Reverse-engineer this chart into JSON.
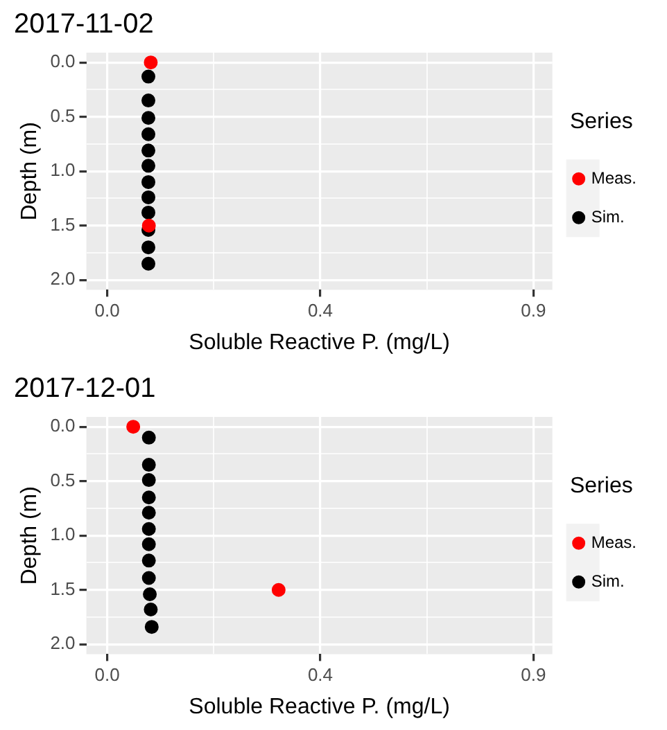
{
  "chart_data": [
    {
      "type": "scatter",
      "title": "2017-11-02",
      "xlabel": "Soluble Reactive P. (mg/L)",
      "ylabel": "Depth (m)",
      "legend_title": "Series",
      "legend": "right",
      "grid": true,
      "marker": "circle",
      "xlim": [
        -0.044,
        0.94
      ],
      "xticks": [
        {
          "value": 0,
          "label": "0.0"
        },
        {
          "value": 0.225,
          "label": null
        },
        {
          "value": 0.45,
          "label": "0.4"
        },
        {
          "value": 0.675,
          "label": null
        },
        0.9
      ],
      "ylim": [
        2.09,
        -0.09
      ],
      "yticks": [
        {
          "value": 0,
          "label": "0.0"
        },
        {
          "value": 0.25,
          "label": null
        },
        {
          "value": 0.5,
          "label": "0.5"
        },
        {
          "value": 0.75,
          "label": null
        },
        {
          "value": 1,
          "label": "1.0"
        },
        {
          "value": 1.25,
          "label": null
        },
        {
          "value": 1.5,
          "label": "1.5"
        },
        {
          "value": 1.75,
          "label": null
        },
        {
          "value": 2,
          "label": "2.0"
        }
      ],
      "series": [
        {
          "name": "Meas.",
          "color": "#ff0000",
          "x": [
            0.092,
            0.088
          ],
          "values": [
            0,
            1.5
          ]
        },
        {
          "name": "Sim.",
          "color": "#000000",
          "x": [
            0.087,
            0.087,
            0.087,
            0.087,
            0.087,
            0.087,
            0.087,
            0.087,
            0.087,
            0.087,
            0.087,
            0.087
          ],
          "values": [
            0.13,
            0.35,
            0.51,
            0.66,
            0.81,
            0.95,
            1.1,
            1.24,
            1.38,
            1.54,
            1.7,
            1.85
          ]
        }
      ]
    },
    {
      "type": "scatter",
      "title": "2017-12-01",
      "xlabel": "Soluble Reactive P. (mg/L)",
      "ylabel": "Depth (m)",
      "legend_title": "Series",
      "legend": "right",
      "grid": true,
      "marker": "circle",
      "xlim": [
        -0.044,
        0.94
      ],
      "xticks": [
        {
          "value": 0,
          "label": "0.0"
        },
        {
          "value": 0.225,
          "label": null
        },
        {
          "value": 0.45,
          "label": "0.4"
        },
        {
          "value": 0.675,
          "label": null
        },
        0.9
      ],
      "ylim": [
        2.09,
        -0.09
      ],
      "yticks": [
        {
          "value": 0,
          "label": "0.0"
        },
        {
          "value": 0.25,
          "label": null
        },
        {
          "value": 0.5,
          "label": "0.5"
        },
        {
          "value": 0.75,
          "label": null
        },
        {
          "value": 1,
          "label": "1.0"
        },
        {
          "value": 1.25,
          "label": null
        },
        {
          "value": 1.5,
          "label": "1.5"
        },
        {
          "value": 1.75,
          "label": null
        },
        {
          "value": 2,
          "label": "2.0"
        }
      ],
      "series": [
        {
          "name": "Meas.",
          "color": "#ff0000",
          "x": [
            0.055,
            0.362
          ],
          "values": [
            0,
            1.5
          ]
        },
        {
          "name": "Sim.",
          "color": "#000000",
          "x": [
            0.088,
            0.088,
            0.088,
            0.088,
            0.088,
            0.088,
            0.088,
            0.088,
            0.088,
            0.09,
            0.092,
            0.094
          ],
          "values": [
            0.1,
            0.35,
            0.49,
            0.65,
            0.79,
            0.94,
            1.08,
            1.23,
            1.39,
            1.54,
            1.68,
            1.84
          ]
        }
      ]
    }
  ]
}
